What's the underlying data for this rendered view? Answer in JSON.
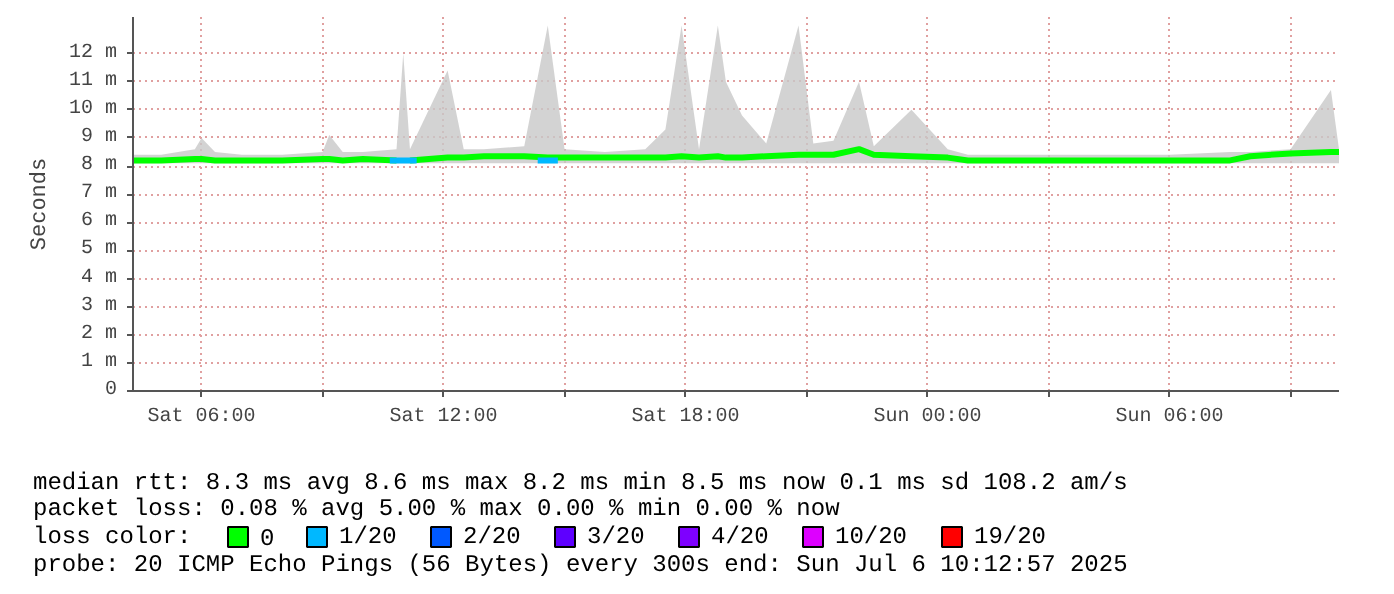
{
  "chart_data": {
    "type": "line",
    "ylabel": "Seconds",
    "x": [
      "2025-07-05T04:18",
      "2025-07-05T05:00",
      "2025-07-05T05:50",
      "2025-07-05T06:00",
      "2025-07-05T06:20",
      "2025-07-05T07:00",
      "2025-07-05T08:00",
      "2025-07-05T09:00",
      "2025-07-05T09:10",
      "2025-07-05T09:30",
      "2025-07-05T10:00",
      "2025-07-05T10:50",
      "2025-07-05T11:00",
      "2025-07-05T11:10",
      "2025-07-05T12:06",
      "2025-07-05T12:30",
      "2025-07-05T13:00",
      "2025-07-05T14:00",
      "2025-07-05T14:35",
      "2025-07-05T15:00",
      "2025-07-05T16:00",
      "2025-07-05T17:00",
      "2025-07-05T17:30",
      "2025-07-05T17:54",
      "2025-07-05T18:20",
      "2025-07-05T18:48",
      "2025-07-05T19:00",
      "2025-07-05T19:24",
      "2025-07-05T20:00",
      "2025-07-05T20:48",
      "2025-07-05T21:10",
      "2025-07-05T21:40",
      "2025-07-05T22:18",
      "2025-07-05T22:40",
      "2025-07-05T23:36",
      "2025-07-06T00:30",
      "2025-07-06T01:00",
      "2025-07-06T02:00",
      "2025-07-06T04:00",
      "2025-07-06T06:00",
      "2025-07-06T07:30",
      "2025-07-06T08:00",
      "2025-07-06T09:00",
      "2025-07-06T10:00",
      "2025-07-06T10:12"
    ],
    "series": [
      {
        "name": "0",
        "color": "#00ff00",
        "values": [
          8.2,
          8.2,
          8.25,
          8.25,
          8.2,
          8.2,
          8.2,
          8.25,
          8.25,
          8.2,
          8.25,
          8.2,
          null,
          8.2,
          8.3,
          8.3,
          8.35,
          8.35,
          8.3,
          8.3,
          8.3,
          8.3,
          8.3,
          8.35,
          8.3,
          8.35,
          8.3,
          8.3,
          8.35,
          8.4,
          8.4,
          8.4,
          8.6,
          8.4,
          8.35,
          8.3,
          8.2,
          8.2,
          8.2,
          8.2,
          8.2,
          8.35,
          8.45,
          8.5,
          8.5
        ],
        "lower": [
          8.1,
          8.1,
          8.1,
          8.1,
          8.1,
          8.1,
          8.1,
          8.1,
          8.1,
          8.1,
          8.1,
          8.1,
          8.1,
          8.1,
          8.1,
          8.1,
          8.1,
          8.1,
          8.1,
          8.1,
          8.1,
          8.1,
          8.1,
          8.1,
          8.1,
          8.1,
          8.1,
          8.1,
          8.1,
          8.1,
          8.1,
          8.1,
          8.1,
          8.1,
          8.1,
          8.1,
          8.1,
          8.1,
          8.1,
          8.1,
          8.1,
          8.1,
          8.1,
          8.1,
          8.1
        ],
        "upper": [
          8.4,
          8.4,
          8.6,
          9.0,
          8.5,
          8.4,
          8.4,
          8.5,
          9.1,
          8.5,
          8.5,
          8.6,
          12.0,
          8.6,
          11.4,
          8.6,
          8.6,
          8.7,
          13.0,
          8.6,
          8.5,
          8.6,
          9.3,
          13.0,
          8.6,
          13.0,
          11.0,
          9.8,
          8.8,
          13.0,
          8.8,
          8.9,
          11.0,
          8.7,
          10.0,
          8.6,
          8.4,
          8.4,
          8.4,
          8.4,
          8.5,
          8.5,
          8.6,
          10.7,
          8.6
        ]
      },
      {
        "name": "1/20",
        "color": "#00b8ff",
        "x": [
          "2025-07-05T10:40",
          "2025-07-05T11:20",
          "2025-07-05T12:00",
          "2025-07-05T14:20",
          "2025-07-05T14:50"
        ],
        "values": [
          8.2,
          8.2,
          null,
          8.2,
          8.2
        ]
      },
      {
        "name": "2/20",
        "color": "#0059ff",
        "values": [
          null,
          null,
          null,
          null,
          null,
          null,
          null,
          null,
          null,
          null,
          null,
          null,
          null,
          null,
          null,
          null,
          null,
          null,
          null,
          null,
          null,
          null,
          null,
          null,
          null,
          null,
          null,
          null,
          null,
          null,
          null,
          null,
          null,
          null,
          null,
          null,
          null,
          null,
          null,
          null,
          null,
          null,
          null,
          null,
          null
        ]
      },
      {
        "name": "3/20",
        "color": "#5e00ff",
        "values": [
          null,
          null,
          null,
          null,
          null,
          null,
          null,
          null,
          null,
          null,
          null,
          null,
          null,
          null,
          null,
          null,
          null,
          null,
          null,
          null,
          null,
          null,
          null,
          null,
          null,
          null,
          null,
          null,
          null,
          null,
          null,
          null,
          null,
          null,
          null,
          null,
          null,
          null,
          null,
          null,
          null,
          null,
          null,
          null,
          null
        ]
      },
      {
        "name": "4/20",
        "color": "#7e00ff",
        "values": [
          null,
          null,
          null,
          null,
          null,
          null,
          null,
          null,
          null,
          null,
          null,
          null,
          null,
          null,
          null,
          null,
          null,
          null,
          null,
          null,
          null,
          null,
          null,
          null,
          null,
          null,
          null,
          null,
          null,
          null,
          null,
          null,
          null,
          null,
          null,
          null,
          null,
          null,
          null,
          null,
          null,
          null,
          null,
          null,
          null
        ]
      },
      {
        "name": "10/20",
        "color": "#dd00ff",
        "values": [
          null,
          null,
          null,
          null,
          null,
          null,
          null,
          null,
          null,
          null,
          null,
          null,
          null,
          null,
          null,
          null,
          null,
          null,
          null,
          null,
          null,
          null,
          null,
          null,
          null,
          null,
          null,
          null,
          null,
          null,
          null,
          null,
          null,
          null,
          null,
          null,
          null,
          null,
          null,
          null,
          null,
          null,
          null,
          null,
          null
        ]
      },
      {
        "name": "19/20",
        "color": "#ff0000",
        "values": [
          null,
          null,
          null,
          null,
          null,
          null,
          null,
          null,
          null,
          null,
          null,
          null,
          null,
          null,
          null,
          null,
          null,
          null,
          null,
          null,
          null,
          null,
          null,
          null,
          null,
          null,
          null,
          null,
          null,
          null,
          null,
          null,
          null,
          null,
          null,
          null,
          null,
          null,
          null,
          null,
          null,
          null,
          null,
          null,
          null
        ]
      }
    ],
    "legend": "bottom",
    "legend_title": "loss color:",
    "grid": true,
    "marker": "none",
    "line_style": "solid",
    "xlim": [
      "2025-07-05T04:18",
      "2025-07-06T10:12"
    ],
    "xticks": [
      {
        "value": "2025-07-05T06:00",
        "label": "Sat 06:00"
      },
      {
        "value": "2025-07-05T09:00",
        "label": null
      },
      {
        "value": "2025-07-05T12:00",
        "label": "Sat 12:00"
      },
      {
        "value": "2025-07-05T15:00",
        "label": null
      },
      {
        "value": "2025-07-05T18:00",
        "label": "Sat 18:00"
      },
      {
        "value": "2025-07-05T21:00",
        "label": null
      },
      {
        "value": "2025-07-06T00:00",
        "label": "Sun 00:00"
      },
      {
        "value": "2025-07-06T03:00",
        "label": null
      },
      {
        "value": "2025-07-06T06:00",
        "label": "Sun 06:00"
      },
      {
        "value": "2025-07-06T09:00",
        "label": null
      }
    ],
    "ylim": [
      0,
      13.3
    ],
    "yticks": [
      0,
      {
        "value": 1,
        "label": "1 m"
      },
      {
        "value": 2,
        "label": "2 m"
      },
      {
        "value": 3,
        "label": "3 m"
      },
      {
        "value": 4,
        "label": "4 m"
      },
      {
        "value": 5,
        "label": "5 m"
      },
      {
        "value": 6,
        "label": "6 m"
      },
      {
        "value": 7,
        "label": "7 m"
      },
      {
        "value": 8,
        "label": "8 m"
      },
      {
        "value": 9,
        "label": "9 m"
      },
      {
        "value": 10,
        "label": "10 m"
      },
      {
        "value": 11,
        "label": "11 m"
      },
      {
        "value": 12,
        "label": "12 m"
      }
    ],
    "annotations": [
      "median rtt:  8.3 ms avg  8.6 ms max  8.2 ms min  8.5 ms now  0.1 ms sd  108.2   am/s",
      "packet loss: 0.08 % avg  5.00 % max  0.00 % min  0.00 % now",
      "probe:       20 ICMP Echo Pings (56 Bytes) every 300s           end: Sun Jul  6 10:12:57 2025"
    ]
  }
}
